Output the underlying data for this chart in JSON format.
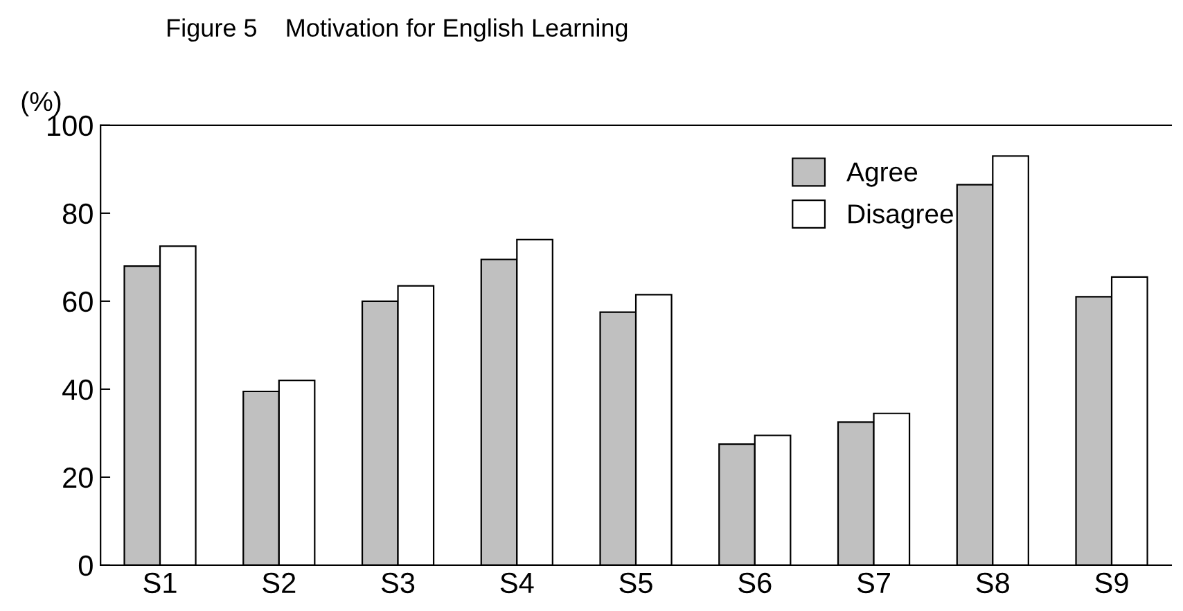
{
  "chart_data": {
    "type": "bar",
    "title": "Figure 5    Motivation for English Learning",
    "ylabel": "(%)",
    "categories": [
      "S1",
      "S2",
      "S3",
      "S4",
      "S5",
      "S6",
      "S7",
      "S8",
      "S9"
    ],
    "series": [
      {
        "name": "Agree",
        "color": "#c0c0c0",
        "values": [
          68,
          39.5,
          60,
          69.5,
          57.5,
          27.5,
          32.5,
          86.5,
          61
        ]
      },
      {
        "name": "Disagree",
        "color": "#ffffff",
        "values": [
          72.5,
          42,
          63.5,
          74,
          61.5,
          29.5,
          34.5,
          93,
          65.5
        ]
      }
    ],
    "ylim": [
      0,
      100
    ],
    "yticks": [
      0,
      20,
      40,
      60,
      80,
      100
    ],
    "grid": false,
    "legend": "top right"
  }
}
